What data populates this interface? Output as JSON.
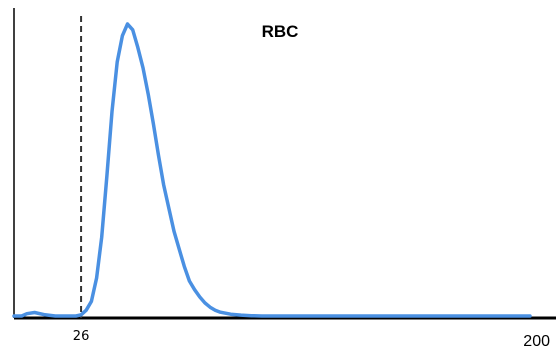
{
  "chart_data": {
    "type": "line",
    "title": "RBC",
    "xlabel": "",
    "ylabel": "",
    "xlim": [
      0,
      200
    ],
    "ylim": [
      0,
      1
    ],
    "grid": false,
    "legend": "none",
    "threshold": 26,
    "tick_labels": [
      {
        "value": 26,
        "label": "26"
      },
      {
        "value": 200,
        "label": "200"
      }
    ],
    "series": [
      {
        "color": "#4a90e2",
        "x": [
          0,
          3,
          5,
          8,
          12,
          16,
          20,
          24,
          26,
          28,
          30,
          32,
          34,
          36,
          38,
          40,
          42,
          44,
          46,
          48,
          50,
          52,
          54,
          56,
          58,
          60,
          62,
          64,
          66,
          68,
          70,
          72,
          74,
          76,
          78,
          80,
          84,
          88,
          92,
          96,
          100,
          120,
          150,
          180,
          200
        ],
        "y": [
          0.0,
          0.0,
          0.008,
          0.012,
          0.004,
          0.0,
          0.0,
          0.0,
          0.004,
          0.02,
          0.05,
          0.13,
          0.27,
          0.48,
          0.7,
          0.87,
          0.96,
          1.0,
          0.98,
          0.92,
          0.85,
          0.76,
          0.66,
          0.55,
          0.45,
          0.37,
          0.29,
          0.23,
          0.17,
          0.12,
          0.09,
          0.065,
          0.045,
          0.03,
          0.02,
          0.013,
          0.006,
          0.003,
          0.001,
          0.0,
          0.0,
          0.0,
          0.0,
          0.0,
          0.0
        ]
      }
    ],
    "colors": {
      "axis": "#000000",
      "curve": "#4a90e2",
      "threshold_line": "#333333"
    }
  }
}
